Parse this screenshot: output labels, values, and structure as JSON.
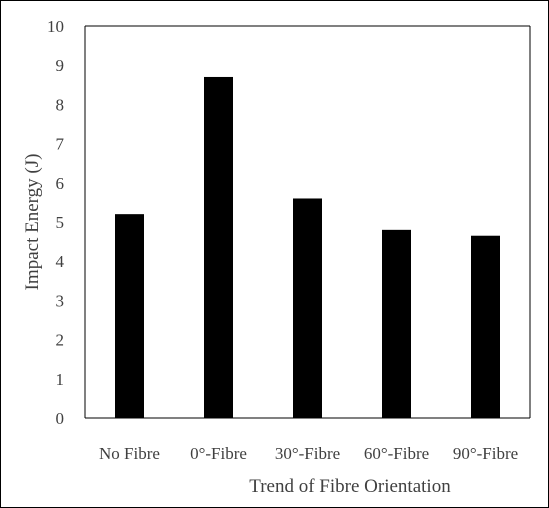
{
  "chart_data": {
    "type": "bar",
    "title": "",
    "categories": [
      "No Fibre",
      "0°-Fibre",
      "30°-Fibre",
      "60°-Fibre",
      "90°-Fibre"
    ],
    "values": [
      5.2,
      8.7,
      5.6,
      4.8,
      4.65
    ],
    "xlabel": "Trend of Fibre Orientation",
    "ylabel": "Impact Energy  (J)",
    "ylim": [
      0,
      10
    ],
    "yticks": [
      0,
      1,
      2,
      3,
      4,
      5,
      6,
      7,
      8,
      9,
      10
    ],
    "grid": false,
    "legend": "none",
    "bar_color": "#000000",
    "axis_color": "#000000",
    "text_color": "#404040"
  }
}
